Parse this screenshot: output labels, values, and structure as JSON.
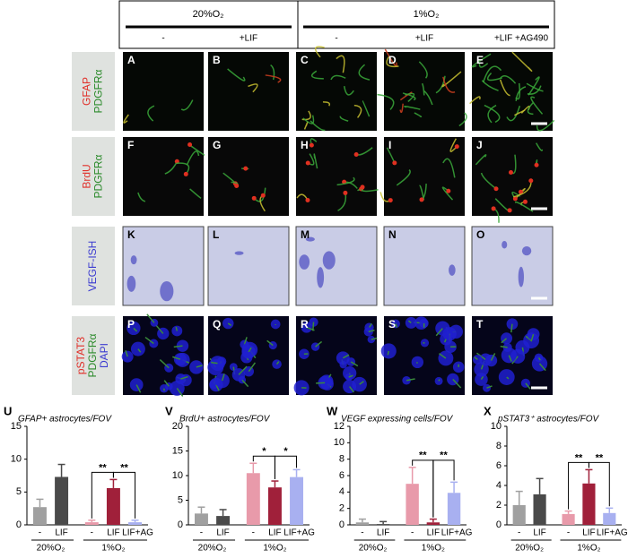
{
  "header": {
    "groups": [
      "20%O₂",
      "1%O₂"
    ],
    "columns": [
      "-",
      "+LIF",
      "-",
      "+LIF",
      "+LIF +AG490"
    ]
  },
  "rows": [
    {
      "labels": [
        "GFAP",
        "PDGFRα"
      ],
      "colors": [
        "#e0302a",
        "#2a8a2a"
      ]
    },
    {
      "labels": [
        "BrdU",
        "PDGFRα"
      ],
      "colors": [
        "#e0302a",
        "#2a8a2a"
      ]
    },
    {
      "labels": [
        "VEGF-ISH"
      ],
      "colors": [
        "#3a3ad0"
      ]
    },
    {
      "labels": [
        "pSTAT3",
        "PDGFRα",
        "DAPI"
      ],
      "colors": [
        "#e0302a",
        "#2a8a2a",
        "#3a3ad0"
      ]
    }
  ],
  "panels": [
    "A",
    "B",
    "C",
    "D",
    "E",
    "F",
    "G",
    "H",
    "I",
    "J",
    "K",
    "L",
    "M",
    "N",
    "O",
    "P",
    "Q",
    "R",
    "S",
    "T"
  ],
  "chart_data": [
    {
      "type": "bar",
      "letter": "U",
      "title": "GFAP+ astrocytes/FOV",
      "categories": [
        "-",
        "LIF",
        "-",
        "LIF",
        "LIF+AG"
      ],
      "groups": [
        "20%O₂",
        "1%O₂"
      ],
      "values": [
        2.7,
        7.3,
        0.4,
        5.6,
        0.4
      ],
      "errors": [
        1.2,
        1.9,
        0.3,
        1.3,
        0.3
      ],
      "colors": [
        "#a0a0a0",
        "#4a4a4a",
        "#e89aaa",
        "#a0203a",
        "#a8b0f0"
      ],
      "ylim": [
        0,
        15
      ],
      "yticks": [
        0,
        5,
        10,
        15
      ],
      "annotations": [
        "**",
        "**"
      ]
    },
    {
      "type": "bar",
      "letter": "V",
      "title": "BrdU+ astrocytes/FOV",
      "categories": [
        "-",
        "LIF",
        "-",
        "LIF",
        "LIF+AG"
      ],
      "groups": [
        "20%O₂",
        "1%O₂"
      ],
      "values": [
        2.3,
        1.8,
        10.5,
        7.6,
        9.7
      ],
      "errors": [
        1.3,
        1.3,
        2.0,
        1.3,
        1.5
      ],
      "colors": [
        "#a0a0a0",
        "#4a4a4a",
        "#e89aaa",
        "#a0203a",
        "#a8b0f0"
      ],
      "ylim": [
        0,
        20
      ],
      "yticks": [
        0,
        5,
        10,
        15,
        20
      ],
      "annotations": [
        "*",
        "*"
      ]
    },
    {
      "type": "bar",
      "letter": "W",
      "title": "VEGF expressing cells/FOV",
      "categories": [
        "-",
        "LIF",
        "-",
        "LIF",
        "LIF+AG"
      ],
      "groups": [
        "20%O₂",
        "1%O₂"
      ],
      "values": [
        0.3,
        0.1,
        5.0,
        0.3,
        3.9
      ],
      "errors": [
        0.4,
        0.3,
        2.0,
        0.4,
        1.3
      ],
      "colors": [
        "#a0a0a0",
        "#4a4a4a",
        "#e89aaa",
        "#a0203a",
        "#a8b0f0"
      ],
      "ylim": [
        0,
        12
      ],
      "yticks": [
        0,
        2,
        4,
        6,
        8,
        10,
        12
      ],
      "annotations": [
        "**",
        "**"
      ]
    },
    {
      "type": "bar",
      "letter": "X",
      "title": "pSTAT3⁺ astrocytes/FOV",
      "categories": [
        "-",
        "LIF",
        "-",
        "LIF",
        "LIF+AG"
      ],
      "groups": [
        "20%O₂",
        "1%O₂"
      ],
      "values": [
        2.0,
        3.1,
        1.1,
        4.2,
        1.2
      ],
      "errors": [
        1.4,
        1.6,
        0.3,
        1.4,
        0.5
      ],
      "colors": [
        "#a0a0a0",
        "#4a4a4a",
        "#e89aaa",
        "#a0203a",
        "#a8b0f0"
      ],
      "ylim": [
        0,
        10
      ],
      "yticks": [
        0,
        2,
        4,
        6,
        8,
        10
      ],
      "annotations": [
        "**",
        "**"
      ]
    }
  ]
}
